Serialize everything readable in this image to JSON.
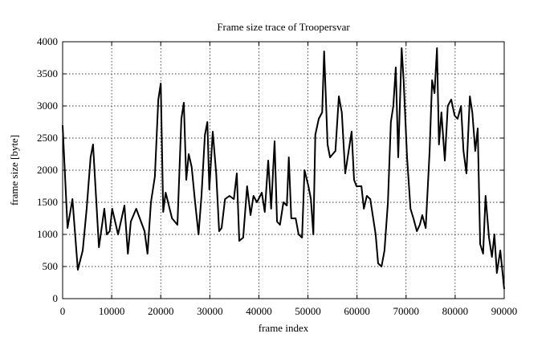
{
  "chart_data": {
    "type": "line",
    "title": "Frame size trace of Troopersvar",
    "x_label": "frame index",
    "y_label": "frame size [byte]",
    "x": [
      0,
      1000,
      2000,
      3100,
      4100,
      4900,
      5700,
      6200,
      7400,
      8500,
      9000,
      9600,
      10100,
      11300,
      12600,
      13300,
      13900,
      15000,
      16700,
      17300,
      18000,
      18800,
      19500,
      20000,
      20500,
      21000,
      22300,
      23400,
      24200,
      24700,
      25200,
      25700,
      26300,
      27000,
      27700,
      28300,
      29000,
      29500,
      29900,
      30600,
      31300,
      31900,
      32400,
      33100,
      34000,
      34900,
      35500,
      36000,
      36800,
      37600,
      38300,
      38900,
      39600,
      40600,
      41200,
      41900,
      42500,
      43200,
      43700,
      44300,
      45000,
      45700,
      46100,
      46600,
      47500,
      48100,
      48800,
      49300,
      50100,
      50600,
      51100,
      51500,
      52200,
      52900,
      53300,
      54000,
      54500,
      55600,
      56300,
      56900,
      57600,
      58300,
      58900,
      59400,
      59900,
      60900,
      61400,
      62000,
      62700,
      63300,
      63800,
      64300,
      65000,
      65600,
      66300,
      66900,
      67400,
      67900,
      68400,
      69100,
      69500,
      70200,
      70900,
      71500,
      72200,
      72800,
      73300,
      74000,
      74800,
      75300,
      75800,
      76300,
      76700,
      77200,
      77900,
      78500,
      79200,
      79900,
      80500,
      81200,
      81700,
      82300,
      83000,
      83500,
      84100,
      84600,
      85100,
      85700,
      86200,
      86900,
      87500,
      88000,
      88500,
      89200,
      90000
    ],
    "series": [
      {
        "name": "Troopersvar",
        "color": "#000000",
        "values": [
          2700,
          1100,
          1550,
          450,
          750,
          1400,
          2200,
          2400,
          800,
          1400,
          1000,
          1050,
          1400,
          1000,
          1450,
          700,
          1200,
          1400,
          1050,
          700,
          1500,
          1900,
          3100,
          3350,
          1350,
          1650,
          1250,
          1150,
          2800,
          3050,
          1850,
          2250,
          2050,
          1500,
          1000,
          1600,
          2550,
          2750,
          1700,
          2600,
          1950,
          1050,
          1100,
          1550,
          1600,
          1550,
          1950,
          900,
          950,
          1750,
          1300,
          1600,
          1500,
          1650,
          1350,
          2150,
          1400,
          2450,
          1200,
          1150,
          1500,
          1450,
          2200,
          1250,
          1250,
          1000,
          950,
          2000,
          1750,
          1550,
          1000,
          2550,
          2800,
          2900,
          3850,
          2400,
          2200,
          2300,
          3150,
          2900,
          1950,
          2300,
          2600,
          1850,
          1750,
          1750,
          1400,
          1600,
          1550,
          1250,
          1000,
          550,
          500,
          750,
          1500,
          2750,
          3000,
          3600,
          2200,
          3900,
          3400,
          2200,
          1400,
          1250,
          1050,
          1150,
          1300,
          1100,
          2300,
          3400,
          3200,
          3900,
          2400,
          2900,
          2150,
          3000,
          3100,
          2850,
          2800,
          3000,
          2300,
          1950,
          3150,
          2900,
          2300,
          2650,
          850,
          700,
          1600,
          950,
          650,
          1000,
          400,
          750,
          150
        ]
      }
    ],
    "xlim": [
      0,
      90000
    ],
    "ylim": [
      0,
      4000
    ],
    "xticks": [
      0,
      10000,
      20000,
      30000,
      40000,
      50000,
      60000,
      70000,
      80000,
      90000
    ],
    "yticks": [
      0,
      500,
      1000,
      1500,
      2000,
      2500,
      3000,
      3500,
      4000
    ],
    "grid": true
  }
}
